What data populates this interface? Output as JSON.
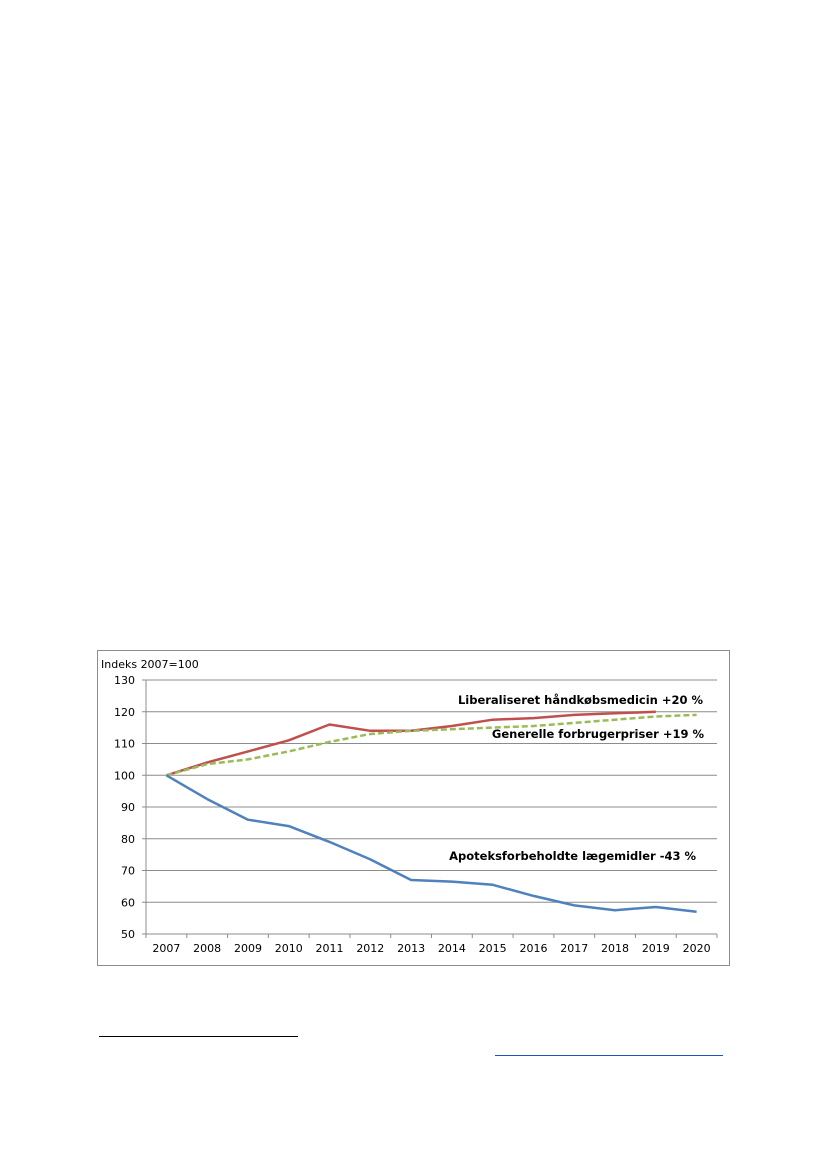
{
  "chart_data": {
    "type": "line",
    "unit_label": "Indeks  2007=100",
    "x": [
      "2007",
      "2008",
      "2009",
      "2010",
      "2011",
      "2012",
      "2013",
      "2014",
      "2015",
      "2016",
      "2017",
      "2018",
      "2019",
      "2020"
    ],
    "ylim": [
      50,
      130
    ],
    "yticks": [
      "50",
      "60",
      "70",
      "80",
      "90",
      "100",
      "110",
      "120",
      "130"
    ],
    "grid": true,
    "series": [
      {
        "label": "Liberaliseret håndkøbsmedicin +20 %",
        "color": "#c0504d",
        "dash": false,
        "values": [
          100,
          104,
          107.5,
          111,
          116,
          114,
          114,
          115.5,
          117.5,
          118,
          119,
          119.5,
          120,
          null
        ]
      },
      {
        "label": "Generelle forbrugerpriser +19 %",
        "color": "#9bbb59",
        "dash": true,
        "values": [
          100,
          103.5,
          105,
          107.5,
          110.5,
          113,
          114,
          114.5,
          115,
          115.5,
          116.5,
          117.5,
          118.5,
          119
        ]
      },
      {
        "label": "Apoteksforbeholdte lægemidler -43 %",
        "color": "#4f81bd",
        "dash": false,
        "values": [
          100,
          92.5,
          86,
          84,
          79,
          73.5,
          67,
          66.5,
          65.5,
          62,
          59,
          57.5,
          58.5,
          57
        ]
      }
    ]
  }
}
